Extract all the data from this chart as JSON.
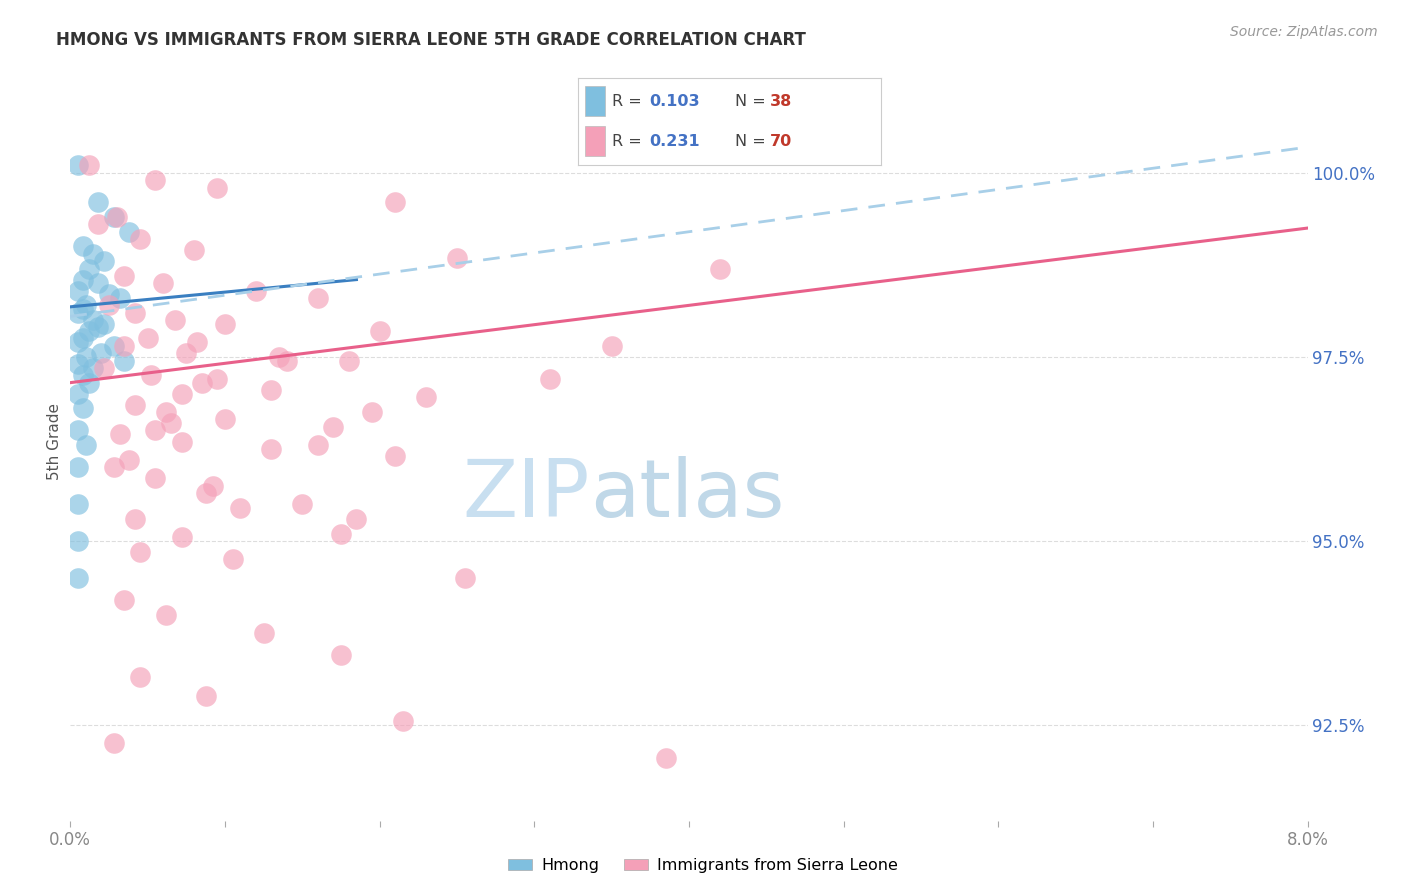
{
  "title": "HMONG VS IMMIGRANTS FROM SIERRA LEONE 5TH GRADE CORRELATION CHART",
  "source": "Source: ZipAtlas.com",
  "ylabel": "5th Grade",
  "legend_blue_r_label": "R = ",
  "legend_blue_r_val": "0.103",
  "legend_blue_n_label": "N = ",
  "legend_blue_n_val": "38",
  "legend_pink_r_label": "R = ",
  "legend_pink_r_val": "0.231",
  "legend_pink_n_label": "N = ",
  "legend_pink_n_val": "70",
  "ytick_values": [
    92.5,
    95.0,
    97.5,
    100.0
  ],
  "xlim": [
    0.0,
    8.0
  ],
  "ylim": [
    91.2,
    101.5
  ],
  "blue_color": "#7fbfdf",
  "pink_color": "#f4a0b8",
  "blue_line_color": "#3a7fc1",
  "pink_line_color": "#e8608a",
  "dashed_line_color": "#a8cfe8",
  "watermark_zip_color": "#c8dff0",
  "watermark_atlas_color": "#c0d8e8",
  "background_color": "#ffffff",
  "grid_color": "#dddddd",
  "blue_line_x": [
    0.0,
    1.85
  ],
  "blue_line_y": [
    98.18,
    98.55
  ],
  "pink_line_x": [
    0.0,
    8.0
  ],
  "pink_line_y": [
    97.15,
    99.25
  ],
  "dashed_line_x": [
    0.0,
    8.0
  ],
  "dashed_line_y": [
    98.05,
    100.35
  ],
  "blue_scatter": [
    [
      0.05,
      100.1
    ],
    [
      0.18,
      99.6
    ],
    [
      0.28,
      99.4
    ],
    [
      0.38,
      99.2
    ],
    [
      0.08,
      99.0
    ],
    [
      0.15,
      98.9
    ],
    [
      0.22,
      98.8
    ],
    [
      0.12,
      98.7
    ],
    [
      0.08,
      98.55
    ],
    [
      0.18,
      98.5
    ],
    [
      0.05,
      98.4
    ],
    [
      0.25,
      98.35
    ],
    [
      0.32,
      98.3
    ],
    [
      0.1,
      98.2
    ],
    [
      0.08,
      98.15
    ],
    [
      0.05,
      98.1
    ],
    [
      0.15,
      98.0
    ],
    [
      0.22,
      97.95
    ],
    [
      0.18,
      97.9
    ],
    [
      0.12,
      97.85
    ],
    [
      0.08,
      97.75
    ],
    [
      0.05,
      97.7
    ],
    [
      0.28,
      97.65
    ],
    [
      0.2,
      97.55
    ],
    [
      0.1,
      97.5
    ],
    [
      0.35,
      97.45
    ],
    [
      0.05,
      97.4
    ],
    [
      0.15,
      97.35
    ],
    [
      0.08,
      97.25
    ],
    [
      0.12,
      97.15
    ],
    [
      0.05,
      97.0
    ],
    [
      0.08,
      96.8
    ],
    [
      0.05,
      96.5
    ],
    [
      0.1,
      96.3
    ],
    [
      0.05,
      96.0
    ],
    [
      0.05,
      95.5
    ],
    [
      0.05,
      95.0
    ],
    [
      0.05,
      94.5
    ]
  ],
  "pink_scatter": [
    [
      0.12,
      100.1
    ],
    [
      0.55,
      99.9
    ],
    [
      0.95,
      99.8
    ],
    [
      2.1,
      99.6
    ],
    [
      0.3,
      99.4
    ],
    [
      0.18,
      99.3
    ],
    [
      0.45,
      99.1
    ],
    [
      0.8,
      98.95
    ],
    [
      2.5,
      98.85
    ],
    [
      4.2,
      98.7
    ],
    [
      0.35,
      98.6
    ],
    [
      0.6,
      98.5
    ],
    [
      1.2,
      98.4
    ],
    [
      1.6,
      98.3
    ],
    [
      0.25,
      98.2
    ],
    [
      0.42,
      98.1
    ],
    [
      0.68,
      98.0
    ],
    [
      1.0,
      97.95
    ],
    [
      2.0,
      97.85
    ],
    [
      0.5,
      97.75
    ],
    [
      0.35,
      97.65
    ],
    [
      0.75,
      97.55
    ],
    [
      1.4,
      97.45
    ],
    [
      1.8,
      97.45
    ],
    [
      0.22,
      97.35
    ],
    [
      0.52,
      97.25
    ],
    [
      0.85,
      97.15
    ],
    [
      1.3,
      97.05
    ],
    [
      2.3,
      96.95
    ],
    [
      0.42,
      96.85
    ],
    [
      0.62,
      96.75
    ],
    [
      1.0,
      96.65
    ],
    [
      1.7,
      96.55
    ],
    [
      0.32,
      96.45
    ],
    [
      0.72,
      96.35
    ],
    [
      1.3,
      96.25
    ],
    [
      2.1,
      96.15
    ],
    [
      0.28,
      96.0
    ],
    [
      0.55,
      95.85
    ],
    [
      0.88,
      95.65
    ],
    [
      1.5,
      95.5
    ],
    [
      0.42,
      95.3
    ],
    [
      1.85,
      95.3
    ],
    [
      0.72,
      95.05
    ],
    [
      1.05,
      94.75
    ],
    [
      2.55,
      94.5
    ],
    [
      0.35,
      94.2
    ],
    [
      0.62,
      94.0
    ],
    [
      1.25,
      93.75
    ],
    [
      1.75,
      93.45
    ],
    [
      0.45,
      93.15
    ],
    [
      0.88,
      92.9
    ],
    [
      2.15,
      92.55
    ],
    [
      0.28,
      92.25
    ],
    [
      3.85,
      92.05
    ],
    [
      0.72,
      97.0
    ],
    [
      1.35,
      97.5
    ],
    [
      0.82,
      97.7
    ],
    [
      0.95,
      97.2
    ],
    [
      0.55,
      96.5
    ],
    [
      0.38,
      96.1
    ],
    [
      1.6,
      96.3
    ],
    [
      1.95,
      96.75
    ],
    [
      3.1,
      97.2
    ],
    [
      0.92,
      95.75
    ],
    [
      0.45,
      94.85
    ],
    [
      1.75,
      95.1
    ],
    [
      1.1,
      95.45
    ],
    [
      0.65,
      96.6
    ],
    [
      3.5,
      97.65
    ]
  ]
}
